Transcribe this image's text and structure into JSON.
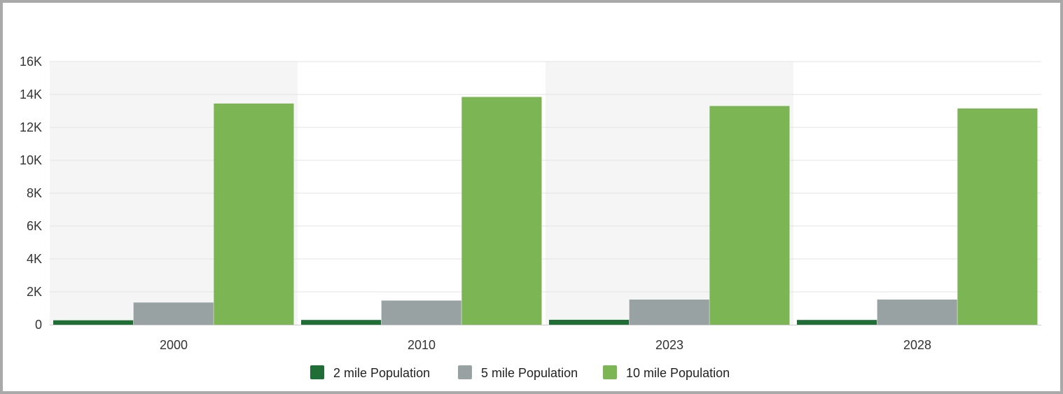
{
  "chart_data": {
    "type": "bar",
    "categories": [
      "2000",
      "2010",
      "2023",
      "2028"
    ],
    "series": [
      {
        "name": "2 mile Population",
        "color": "#1e6e35",
        "values": [
          270,
          290,
          300,
          290
        ]
      },
      {
        "name": "5 mile Population",
        "color": "#98a2a2",
        "values": [
          1350,
          1470,
          1530,
          1530
        ]
      },
      {
        "name": "10 mile Population",
        "color": "#7cb553",
        "values": [
          13450,
          13850,
          13300,
          13150
        ]
      }
    ],
    "yticks": [
      "0",
      "2K",
      "4K",
      "6K",
      "8K",
      "10K",
      "12K",
      "14K",
      "16K"
    ],
    "ylim": [
      0,
      16000
    ],
    "grid": true,
    "alternating_band_color": "#f5f5f6",
    "legend_position": "bottom-center"
  }
}
